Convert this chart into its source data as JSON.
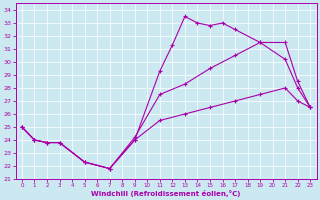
{
  "xlabel": "Windchill (Refroidissement éolien,°C)",
  "bg_color": "#cce8f0",
  "line_color": "#aa00aa",
  "xlim": [
    -0.5,
    23.5
  ],
  "ylim": [
    21,
    34.5
  ],
  "xticks": [
    0,
    1,
    2,
    3,
    4,
    5,
    6,
    7,
    8,
    9,
    10,
    11,
    12,
    13,
    14,
    15,
    16,
    17,
    18,
    19,
    20,
    21,
    22,
    23
  ],
  "yticks": [
    21,
    22,
    23,
    24,
    25,
    26,
    27,
    28,
    29,
    30,
    31,
    32,
    33,
    34
  ],
  "line1_x": [
    0,
    1,
    2,
    3,
    5,
    7,
    9,
    11,
    12,
    13,
    14,
    15,
    16,
    17,
    19,
    21,
    22,
    23
  ],
  "line1_y": [
    25.0,
    24.0,
    23.8,
    23.8,
    22.3,
    21.8,
    24.0,
    29.3,
    31.3,
    33.5,
    33.0,
    32.8,
    33.0,
    32.5,
    31.5,
    31.5,
    28.5,
    26.5
  ],
  "line2_x": [
    0,
    1,
    2,
    3,
    5,
    7,
    9,
    11,
    13,
    15,
    17,
    19,
    21,
    22,
    23
  ],
  "line2_y": [
    25.0,
    24.0,
    23.8,
    23.8,
    22.3,
    21.8,
    24.2,
    27.5,
    28.3,
    29.5,
    30.5,
    31.5,
    30.2,
    28.0,
    26.5
  ],
  "line3_x": [
    0,
    1,
    2,
    3,
    5,
    7,
    9,
    11,
    13,
    15,
    17,
    19,
    21,
    22,
    23
  ],
  "line3_y": [
    25.0,
    24.0,
    23.8,
    23.8,
    22.3,
    21.8,
    24.0,
    25.5,
    26.0,
    26.5,
    27.0,
    27.5,
    28.0,
    27.0,
    26.5
  ]
}
